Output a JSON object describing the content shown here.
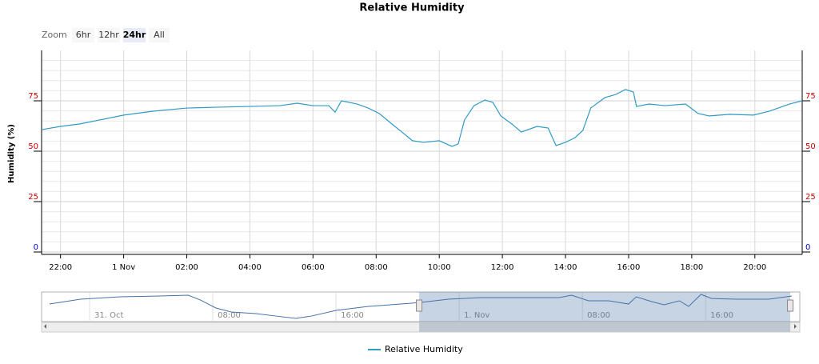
{
  "chart_data": {
    "type": "line",
    "title": "Relative Humidity",
    "y_label": "Humidity (%)",
    "range_selector": {
      "label": "Zoom",
      "buttons": [
        "6hr",
        "12hr",
        "24hr",
        "All"
      ],
      "selected": 2
    },
    "xlim": [
      -2.6,
      21.5
    ],
    "xticks": [
      {
        "value": -2,
        "label": "22:00"
      },
      {
        "value": 0,
        "label": "1 Nov"
      },
      {
        "value": 2,
        "label": "02:00"
      },
      {
        "value": 4,
        "label": "04:00"
      },
      {
        "value": 6,
        "label": "06:00"
      },
      {
        "value": 8,
        "label": "08:00"
      },
      {
        "value": 10,
        "label": "10:00"
      },
      {
        "value": 12,
        "label": "12:00"
      },
      {
        "value": 14,
        "label": "14:00"
      },
      {
        "value": 16,
        "label": "16:00"
      },
      {
        "value": 18,
        "label": "18:00"
      },
      {
        "value": 20,
        "label": "20:00"
      }
    ],
    "ylim": [
      0,
      100
    ],
    "yticks": [
      0,
      25,
      50,
      75
    ],
    "minor_yticks": [
      5,
      10,
      15,
      20,
      30,
      35,
      40,
      45,
      55,
      60,
      65,
      70,
      80,
      85,
      90,
      95
    ],
    "grid": true,
    "opposite_axis": true,
    "series": [
      {
        "name": "Relative Humidity",
        "color": "#2f9ac4",
        "x": [
          -2.6,
          -2,
          -1.4,
          -0.76,
          0,
          0.9,
          2,
          2.9,
          4,
          4.95,
          5.5,
          6,
          6.5,
          6.7,
          6.9,
          7.4,
          7.75,
          8.1,
          8.5,
          8.85,
          9.15,
          9.5,
          10,
          10.4,
          10.6,
          10.8,
          11.1,
          11.45,
          11.7,
          11.95,
          12.3,
          12.6,
          13.1,
          13.45,
          13.7,
          14,
          14.3,
          14.55,
          14.8,
          15.25,
          15.6,
          15.9,
          16.15,
          16.25,
          16.65,
          17.15,
          17.8,
          18.2,
          18.55,
          19.2,
          19.95,
          20.45,
          21.1,
          21.5
        ],
        "values": [
          60.7,
          62.3,
          63.5,
          65.5,
          67.9,
          69.8,
          71.4,
          71.8,
          72.2,
          72.6,
          73.8,
          72.6,
          72.6,
          69.4,
          75,
          73.4,
          71.4,
          68.7,
          63.5,
          59.1,
          55.2,
          54.4,
          55.2,
          52.4,
          53.6,
          65.5,
          72.6,
          75.4,
          74.2,
          67.5,
          63.5,
          59.5,
          62.3,
          61.5,
          52.8,
          54.4,
          56.7,
          60.3,
          71.4,
          76.6,
          78.2,
          80.6,
          79.4,
          72.2,
          73.4,
          72.6,
          73.4,
          68.7,
          67.5,
          68.3,
          67.9,
          69.8,
          73.4,
          75
        ]
      }
    ],
    "navigator": {
      "xlim": [
        -26.6,
        21.6
      ],
      "ylim": [
        45,
        77
      ],
      "xticks": [
        {
          "value": -24,
          "label": "31. Oct"
        },
        {
          "value": -16,
          "label": "08:00"
        },
        {
          "value": -8,
          "label": "16:00"
        },
        {
          "value": 0,
          "label": "1. Nov"
        },
        {
          "value": 8,
          "label": "08:00"
        },
        {
          "value": 16,
          "label": "16:00"
        }
      ],
      "x": [
        -26.6,
        -24.6,
        -22.0,
        -19.4,
        -17.6,
        -16.8,
        -15.8,
        -14.8,
        -13.2,
        -11.9,
        -10.6,
        -9.6,
        -8.0,
        -5.9,
        -3.8,
        -2.5,
        -0.7,
        1.4,
        3.9,
        6.5,
        7.3,
        8.4,
        9.7,
        11.0,
        11.5,
        12.5,
        13.3,
        14.3,
        14.9,
        15.7,
        16.4,
        18.0,
        20.1,
        21.6
      ],
      "values": [
        64.0,
        69.2,
        71.8,
        72.7,
        73.5,
        68.3,
        59.7,
        55.4,
        53.6,
        51.0,
        48.5,
        51.0,
        57.1,
        61.4,
        64.0,
        65.8,
        69.2,
        70.9,
        70.9,
        70.9,
        73.5,
        67.5,
        67.5,
        64.0,
        71.8,
        66.6,
        63.2,
        67.5,
        61.4,
        74.4,
        70.0,
        69.2,
        69.2,
        72.7
      ]
    },
    "legend": "bottom"
  }
}
